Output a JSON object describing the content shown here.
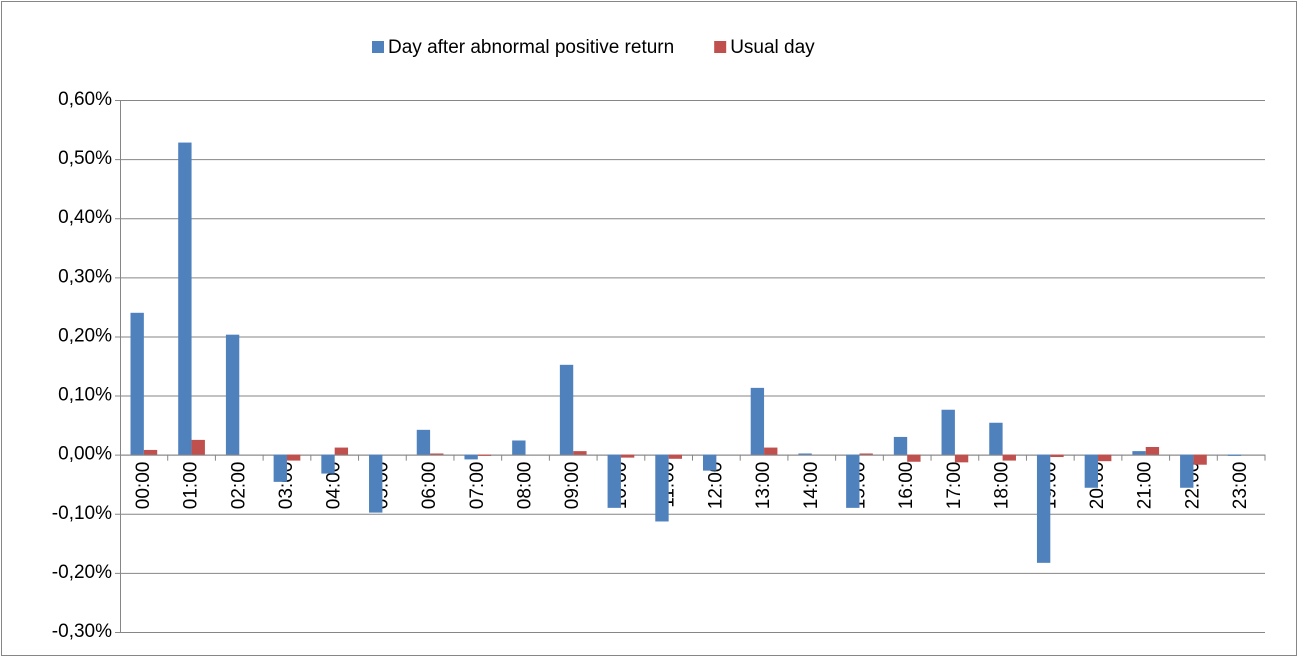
{
  "chart_data": {
    "type": "bar",
    "categories": [
      "00:00",
      "01:00",
      "02:00",
      "03:00",
      "04:00",
      "05:00",
      "06:00",
      "07:00",
      "08:00",
      "09:00",
      "10:00",
      "11:00",
      "12:00",
      "13:00",
      "14:00",
      "15:00",
      "16:00",
      "17:00",
      "18:00",
      "19:00",
      "20:00",
      "21:00",
      "22:00",
      "23:00"
    ],
    "series": [
      {
        "name": "Day after abnormal positive return",
        "color": "#4f81bd",
        "values": [
          0.24,
          0.528,
          0.203,
          -0.046,
          -0.032,
          -0.098,
          0.042,
          -0.008,
          0.024,
          0.152,
          -0.09,
          -0.113,
          -0.027,
          0.113,
          0.002,
          -0.09,
          0.03,
          0.076,
          0.054,
          -0.183,
          -0.056,
          0.006,
          -0.056,
          -0.002
        ]
      },
      {
        "name": "Usual day",
        "color": "#c0504d",
        "values": [
          0.008,
          0.025,
          0.0,
          -0.01,
          0.012,
          0.0,
          0.002,
          -0.002,
          0.0,
          0.006,
          -0.005,
          -0.007,
          0.0,
          0.012,
          0.0,
          0.002,
          -0.012,
          -0.013,
          -0.01,
          -0.004,
          -0.011,
          0.013,
          -0.017,
          0.0
        ]
      }
    ],
    "ylim": [
      -0.3,
      0.6
    ],
    "yticks": [
      {
        "value": -0.3,
        "label": "-0,30%"
      },
      {
        "value": -0.2,
        "label": "-0,20%"
      },
      {
        "value": -0.1,
        "label": "-0,10%"
      },
      {
        "value": 0,
        "label": "0,00%"
      },
      {
        "value": 0.1,
        "label": "0,10%"
      },
      {
        "value": 0.2,
        "label": "0,20%"
      },
      {
        "value": 0.3,
        "label": "0,30%"
      },
      {
        "value": 0.4,
        "label": "0,40%"
      },
      {
        "value": 0.5,
        "label": "0,50%"
      },
      {
        "value": 0.6,
        "label": "0,60%"
      }
    ],
    "grid": true,
    "legend": "top"
  }
}
